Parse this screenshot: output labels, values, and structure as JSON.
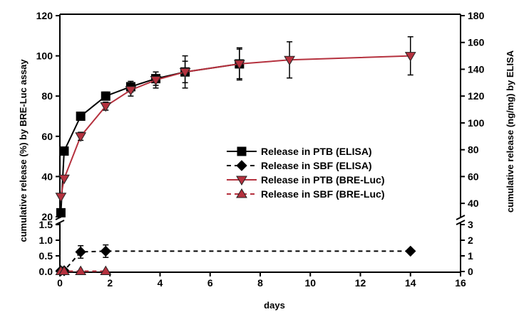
{
  "chart_data": {
    "type": "line",
    "xlabel": "days",
    "ylabel_left": "cumulative release (%) by BRE-Luc assay",
    "ylabel_right": "cumulative release (ng/mg) by ELISA",
    "xlim": [
      0,
      16
    ],
    "x_ticks": [
      "0",
      "2",
      "4",
      "6",
      "8",
      "10",
      "12",
      "14",
      "16"
    ],
    "left_upper": {
      "ylim": [
        20,
        120
      ],
      "ticks": [
        "20",
        "40",
        "60",
        "80",
        "100",
        "120"
      ]
    },
    "left_lower": {
      "ylim": [
        0,
        1.5
      ],
      "ticks": [
        "0.0",
        "0.5",
        "1.0",
        "1.5"
      ]
    },
    "right_upper": {
      "ylim": [
        30,
        180
      ],
      "ticks": [
        "40",
        "60",
        "80",
        "100",
        "120",
        "140",
        "160",
        "180"
      ]
    },
    "right_lower": {
      "ylim": [
        0,
        3
      ],
      "ticks": [
        "0",
        "1",
        "2",
        "3"
      ]
    },
    "axis_break": true,
    "legend_position": "center-right",
    "series": [
      {
        "name": "Release in PTB (ELISA)",
        "axis": "right",
        "color": "#000000",
        "line": "solid",
        "marker": "square",
        "points": [
          {
            "x": 0.04,
            "y": 33,
            "err": 0
          },
          {
            "x": 0.17,
            "y": 79,
            "err": 0
          },
          {
            "x": 0.83,
            "y": 105,
            "err": 2
          },
          {
            "x": 1.83,
            "y": 120,
            "err": 3
          },
          {
            "x": 2.83,
            "y": 127,
            "err": 4
          },
          {
            "x": 3.83,
            "y": 133,
            "err": 5
          },
          {
            "x": 5.0,
            "y": 138,
            "err": 8
          },
          {
            "x": 7.17,
            "y": 144,
            "err": 11
          }
        ]
      },
      {
        "name": "Release in SBF (ELISA)",
        "axis": "right",
        "color": "#000000",
        "line": "dashed",
        "marker": "diamond",
        "points": [
          {
            "x": 0.04,
            "y": 0.05,
            "err": 0
          },
          {
            "x": 0.17,
            "y": 0.05,
            "err": 0
          },
          {
            "x": 0.83,
            "y": 1.25,
            "err": 0.4
          },
          {
            "x": 1.83,
            "y": 1.3,
            "err": 0.4
          },
          {
            "x": 14.0,
            "y": 1.3,
            "err": 0
          }
        ]
      },
      {
        "name": "Release in PTB (BRE-Luc)",
        "axis": "left",
        "color": "#b5313e",
        "line": "solid",
        "marker": "triangle-down",
        "points": [
          {
            "x": 0.04,
            "y": 30,
            "err": 0
          },
          {
            "x": 0.17,
            "y": 39,
            "err": 0
          },
          {
            "x": 0.83,
            "y": 60,
            "err": 2
          },
          {
            "x": 1.83,
            "y": 75,
            "err": 2
          },
          {
            "x": 2.83,
            "y": 83,
            "err": 3
          },
          {
            "x": 3.83,
            "y": 88,
            "err": 4
          },
          {
            "x": 5.0,
            "y": 92,
            "err": 8
          },
          {
            "x": 7.17,
            "y": 96,
            "err": 8
          },
          {
            "x": 9.17,
            "y": 98,
            "err": 9
          },
          {
            "x": 14.0,
            "y": 100,
            "err": 9.5
          }
        ]
      },
      {
        "name": "Release in SBF (BRE-Luc)",
        "axis": "left",
        "color": "#b5313e",
        "line": "dashed",
        "marker": "triangle-up",
        "points": [
          {
            "x": 0.04,
            "y": 0.01,
            "err": 0
          },
          {
            "x": 0.17,
            "y": 0.01,
            "err": 0
          },
          {
            "x": 0.83,
            "y": 0.01,
            "err": 0
          },
          {
            "x": 1.83,
            "y": 0.01,
            "err": 0
          }
        ]
      }
    ]
  }
}
